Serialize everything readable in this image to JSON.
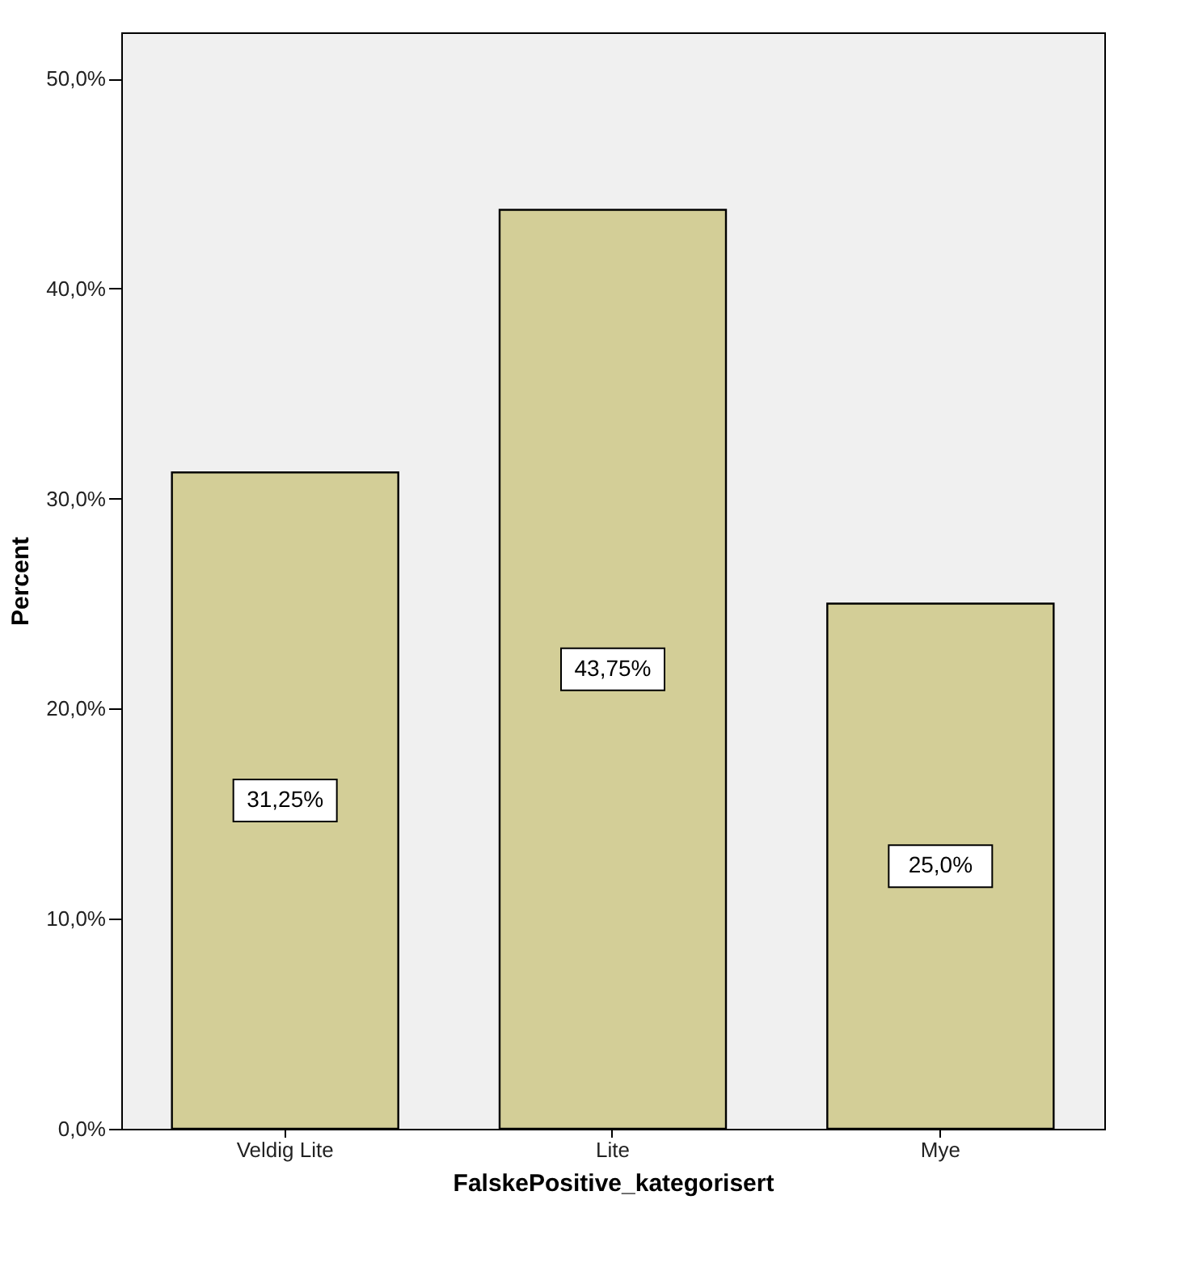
{
  "chart_data": {
    "type": "bar",
    "xlabel": "FalskePositive_kategorisert",
    "ylabel": "Percent",
    "categories": [
      "Veldig Lite",
      "Lite",
      "Mye"
    ],
    "values": [
      31.25,
      43.75,
      25.0
    ],
    "value_labels": [
      "31,25%",
      "43,75%",
      "25,0%"
    ],
    "color": "#d3ce97",
    "ylim": [
      0,
      52.2
    ],
    "yticks": [
      {
        "value": 0,
        "label": "0,0%"
      },
      {
        "value": 10,
        "label": "10,0%"
      },
      {
        "value": 20,
        "label": "20,0%"
      },
      {
        "value": 30,
        "label": "30,0%"
      },
      {
        "value": 40,
        "label": "40,0%"
      },
      {
        "value": 50,
        "label": "50,0%"
      }
    ],
    "grid": false
  }
}
